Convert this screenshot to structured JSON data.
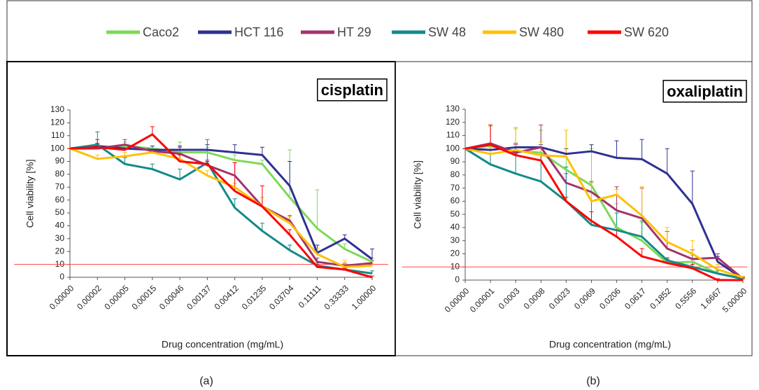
{
  "chart_data": [
    {
      "type": "line",
      "title": "cisplatin",
      "panel_label": "(a)",
      "x_label": "Drug concentration  (mg/mL)",
      "y_label": "Cell viability [%]",
      "categories": [
        "0.00000",
        "0.00002",
        "0.00005",
        "0.00015",
        "0.00046",
        "0.00137",
        "0.00412",
        "0.01235",
        "0.03704",
        "0.11111",
        "0.33333",
        "1.00000"
      ],
      "ylim": [
        0,
        130
      ],
      "yticks": [
        0,
        10,
        20,
        30,
        40,
        50,
        60,
        70,
        80,
        90,
        100,
        110,
        120,
        130
      ],
      "threshold": 10,
      "series": [
        {
          "name": "Caco2",
          "color": "#7ed957",
          "values": [
            100,
            101,
            102,
            100,
            97,
            97,
            91,
            88,
            62,
            38,
            22,
            12
          ],
          "errors": [
            0,
            3,
            3,
            2,
            8,
            4,
            4,
            3,
            37,
            30,
            4,
            3
          ]
        },
        {
          "name": "HCT 116",
          "color": "#2e3192",
          "values": [
            100,
            102,
            100,
            99,
            99,
            99,
            97,
            95,
            71,
            19,
            30,
            14
          ],
          "errors": [
            0,
            2,
            2,
            3,
            3,
            4,
            6,
            6,
            19,
            6,
            3,
            8
          ]
        },
        {
          "name": "HT 29",
          "color": "#a3336b",
          "values": [
            100,
            100,
            103,
            98,
            96,
            87,
            79,
            55,
            44,
            12,
            9,
            11
          ],
          "errors": [
            0,
            3,
            4,
            2,
            5,
            4,
            10,
            7,
            4,
            3,
            2,
            2
          ]
        },
        {
          "name": "SW 48",
          "color": "#138a8a",
          "values": [
            100,
            103,
            88,
            84,
            76,
            89,
            54,
            36,
            21,
            9,
            6,
            3
          ],
          "errors": [
            0,
            10,
            5,
            4,
            8,
            18,
            7,
            6,
            4,
            2,
            2,
            2
          ]
        },
        {
          "name": "SW 480",
          "color": "#ffc000",
          "values": [
            100,
            92,
            94,
            97,
            92,
            79,
            70,
            55,
            42,
            18,
            8,
            9
          ],
          "errors": [
            0,
            3,
            3,
            2,
            3,
            4,
            3,
            7,
            5,
            4,
            5,
            2
          ]
        },
        {
          "name": "SW 620",
          "color": "#ff0000",
          "values": [
            100,
            101,
            99,
            111,
            90,
            88,
            67,
            55,
            33,
            8,
            6,
            0
          ],
          "errors": [
            0,
            6,
            3,
            6,
            5,
            2,
            22,
            16,
            4,
            2,
            1,
            1
          ]
        }
      ]
    },
    {
      "type": "line",
      "title": "oxaliplatin",
      "panel_label": "(b)",
      "x_label": "Drug concentration (mg/mL)",
      "y_label": "Cell viability [%]",
      "categories": [
        "0.00000",
        "0.00001",
        "0.0003",
        "0.0008",
        "0.0023",
        "0.0069",
        "0.0206",
        "0.0617",
        "0.1852",
        "0.5556",
        "1.6667",
        "5.00000"
      ],
      "ylim": [
        0,
        130
      ],
      "yticks": [
        0,
        10,
        20,
        30,
        40,
        50,
        60,
        70,
        80,
        90,
        100,
        110,
        120,
        130
      ],
      "threshold": 10,
      "series": [
        {
          "name": "Caco2",
          "color": "#7ed957",
          "values": [
            100,
            102,
            98,
            97,
            84,
            72,
            40,
            30,
            13,
            14,
            5,
            1
          ],
          "errors": [
            0,
            15,
            18,
            17,
            30,
            28,
            18,
            14,
            4,
            5,
            3,
            1
          ]
        },
        {
          "name": "HCT 116",
          "color": "#2e3192",
          "values": [
            100,
            99,
            101,
            101,
            96,
            98,
            93,
            92,
            81,
            58,
            14,
            1
          ],
          "errors": [
            0,
            3,
            3,
            2,
            4,
            5,
            13,
            15,
            19,
            25,
            4,
            1
          ]
        },
        {
          "name": "HT 29",
          "color": "#a3336b",
          "values": [
            100,
            104,
            97,
            101,
            74,
            67,
            53,
            47,
            24,
            16,
            17,
            1
          ],
          "errors": [
            0,
            14,
            6,
            17,
            7,
            7,
            18,
            23,
            13,
            7,
            3,
            1
          ]
        },
        {
          "name": "SW 48",
          "color": "#138a8a",
          "values": [
            100,
            88,
            81,
            75,
            60,
            42,
            38,
            33,
            15,
            10,
            5,
            1
          ],
          "errors": [
            0,
            8,
            15,
            20,
            26,
            33,
            13,
            12,
            2,
            4,
            2,
            1
          ]
        },
        {
          "name": "SW 480",
          "color": "#ffc000",
          "values": [
            100,
            96,
            99,
            95,
            94,
            60,
            65,
            49,
            29,
            20,
            8,
            2
          ],
          "errors": [
            0,
            5,
            16,
            10,
            20,
            14,
            4,
            22,
            11,
            10,
            4,
            1
          ]
        },
        {
          "name": "SW 620",
          "color": "#ff0000",
          "values": [
            100,
            103,
            95,
            91,
            60,
            45,
            33,
            18,
            13,
            9,
            0,
            0
          ],
          "errors": [
            0,
            15,
            6,
            4,
            3,
            7,
            7,
            6,
            3,
            3,
            1,
            1
          ]
        }
      ]
    }
  ]
}
